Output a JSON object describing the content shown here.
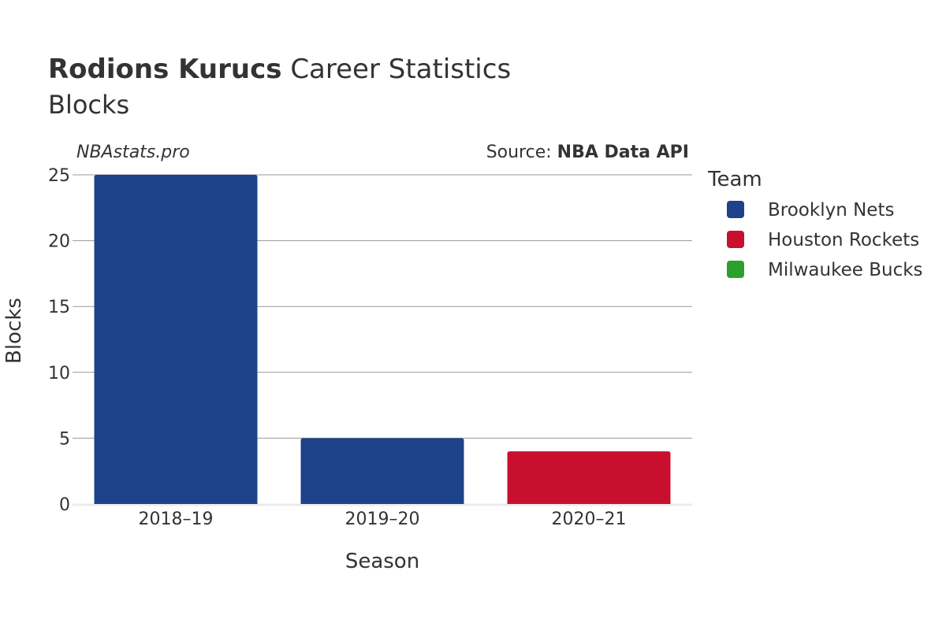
{
  "header": {
    "player_name": "Rodions Kurucs",
    "title_suffix": "Career Statistics",
    "subtitle": "Blocks"
  },
  "watermark": "NBAstats.pro",
  "source": {
    "prefix": "Source: ",
    "name": "NBA Data API"
  },
  "legend": {
    "title": "Team",
    "items": [
      {
        "label": "Brooklyn Nets",
        "color": "#1d428a"
      },
      {
        "label": "Houston Rockets",
        "color": "#c8102e"
      },
      {
        "label": "Milwaukee Bucks",
        "color": "#2ca02c"
      }
    ]
  },
  "chart_data": {
    "type": "bar",
    "xlabel": "Season",
    "ylabel": "Blocks",
    "categories": [
      "2018–19",
      "2019–20",
      "2020–21"
    ],
    "bars": [
      {
        "category": "2018–19",
        "team": "Brooklyn Nets",
        "value": 25,
        "color": "#1d428a"
      },
      {
        "category": "2019–20",
        "team": "Brooklyn Nets",
        "value": 5,
        "color": "#1d428a"
      },
      {
        "category": "2020–21",
        "team": "Houston Rockets",
        "value": 4,
        "color": "#c8102e"
      }
    ],
    "yticks": [
      0,
      5,
      10,
      15,
      20,
      25
    ],
    "ylim": [
      0,
      25
    ],
    "grid": true,
    "legend_position": "right"
  }
}
